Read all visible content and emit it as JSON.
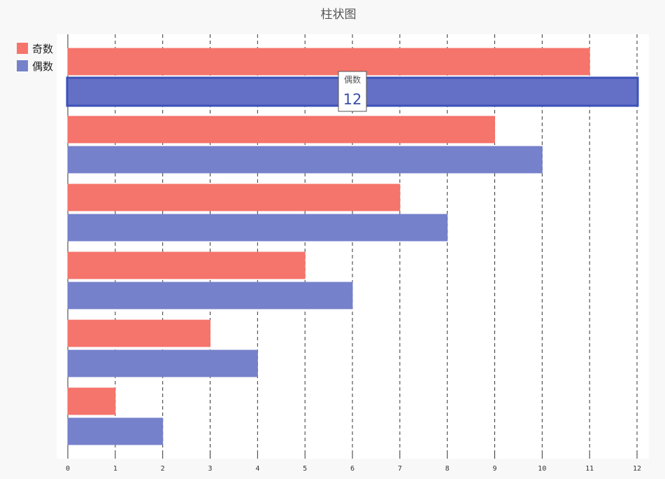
{
  "chart_data": {
    "type": "bar",
    "orientation": "horizontal",
    "title": "柱状图",
    "xlim": [
      0,
      12
    ],
    "x_ticks": [
      "0",
      "1",
      "2",
      "3",
      "4",
      "5",
      "6",
      "7",
      "8",
      "9",
      "10",
      "11",
      "12"
    ],
    "grid": "vertical dashed",
    "legend_position": "top-left",
    "groups_top_to_bottom": 6,
    "series": [
      {
        "name": "奇数",
        "color": "#f5746b",
        "values": [
          11,
          9,
          7,
          5,
          3,
          1
        ]
      },
      {
        "name": "偶数",
        "color": "#7681cb",
        "values": [
          12,
          10,
          8,
          6,
          4,
          2
        ]
      }
    ],
    "highlight": {
      "series": "偶数",
      "group_index": 0,
      "value": 12,
      "color": "#3d52b8"
    }
  },
  "tooltip": {
    "label": "偶数",
    "value": "12"
  }
}
